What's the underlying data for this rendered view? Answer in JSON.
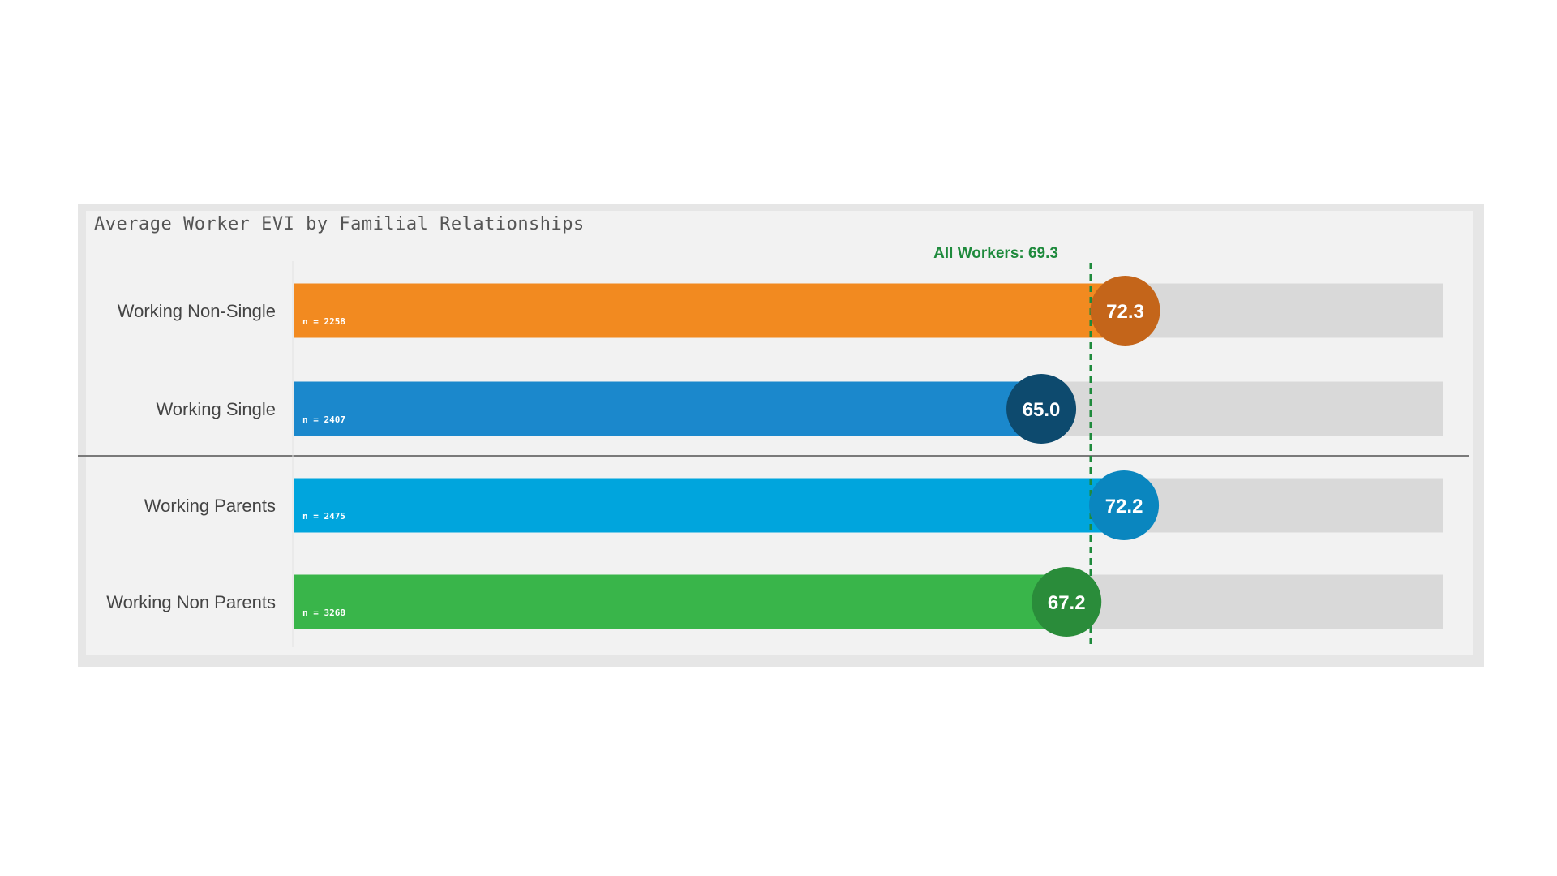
{
  "chart_data": {
    "type": "bar",
    "title": "Average Worker EVI by Familial Relationships",
    "xlim": [
      0,
      100
    ],
    "grid": false,
    "reference": {
      "label": "All Workers: 69.3",
      "value": 69.3,
      "color": "#1e8a3c"
    },
    "groups": [
      {
        "bars": [
          {
            "category": "Working Non-Single",
            "value": 72.3,
            "value_label": "72.3",
            "n_label": "n = 2258",
            "bar_color": "#f28a20",
            "circle_color": "#c4651a"
          },
          {
            "category": "Working Single",
            "value": 65.0,
            "value_label": "65.0",
            "n_label": "n = 2407",
            "bar_color": "#1b88cc",
            "circle_color": "#0d4a6e"
          }
        ]
      },
      {
        "bars": [
          {
            "category": "Working Parents",
            "value": 72.2,
            "value_label": "72.2",
            "n_label": "n = 2475",
            "bar_color": "#00a5dd",
            "circle_color": "#0a86bf"
          },
          {
            "category": "Working Non Parents",
            "value": 67.2,
            "value_label": "67.2",
            "n_label": "n = 3268",
            "bar_color": "#39b54a",
            "circle_color": "#2a8c3a"
          }
        ]
      }
    ],
    "track_color": "#d9d9d9"
  }
}
